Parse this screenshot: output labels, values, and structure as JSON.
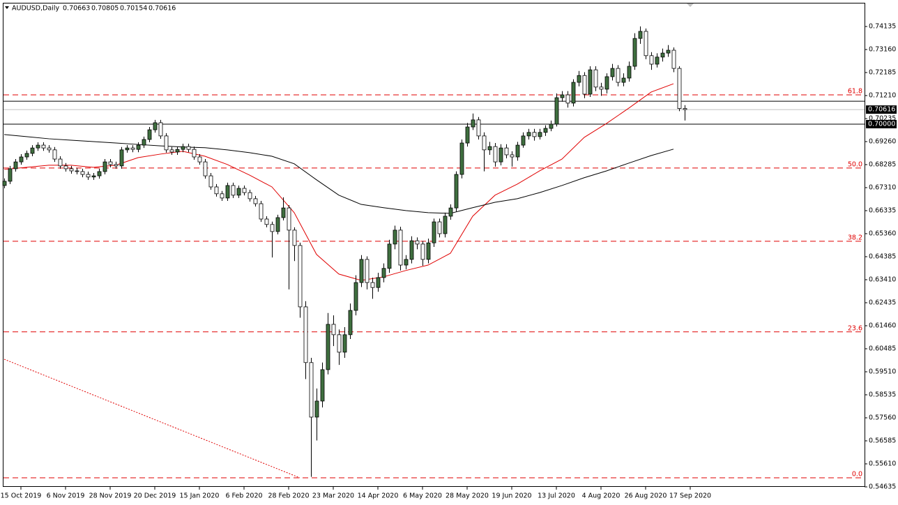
{
  "chart_data": {
    "type": "candlestick",
    "title": "AUDUSD,Daily",
    "up_color": "#3f6f3f",
    "down_color": "#ffffff",
    "stroke": "#000000",
    "categories": [
      "15 Oct 2019",
      "6 Nov 2019",
      "28 Nov 2019",
      "20 Dec 2019",
      "15 Jan 2020",
      "6 Feb 2020",
      "28 Feb 2020",
      "23 Mar 2020",
      "14 Apr 2020",
      "6 May 2020",
      "28 May 2020",
      "19 Jun 2020",
      "13 Jul 2020",
      "4 Aug 2020",
      "26 Aug 2020",
      "17 Sep 2020"
    ],
    "ylim": [
      0.54635,
      0.7511
    ],
    "yticks": [
      0.74135,
      {
        "value": 0.7316,
        "label": "0.73160"
      },
      0.72185,
      {
        "value": 0.7121,
        "label": "0.71210"
      },
      0.70235,
      {
        "value": 0.6926,
        "label": "0.69260"
      },
      0.68285,
      {
        "value": 0.6731,
        "label": "0.67310"
      },
      0.66335,
      {
        "value": 0.6536,
        "label": "0.65360"
      },
      0.64385,
      {
        "value": 0.6341,
        "label": "0.63410"
      },
      0.62435,
      {
        "value": 0.6146,
        "label": "0.61460"
      },
      0.60485,
      {
        "value": 0.5951,
        "label": "0.59510"
      },
      0.58535,
      {
        "value": 0.5756,
        "label": "0.57560"
      },
      0.56585,
      {
        "value": 0.5561,
        "label": "0.55610"
      },
      0.54635
    ],
    "candles": [
      [
        0.674,
        0.677,
        0.6728,
        0.6758
      ],
      [
        0.6758,
        0.6823,
        0.6746,
        0.6811
      ],
      [
        0.6811,
        0.6852,
        0.6799,
        0.684
      ],
      [
        0.684,
        0.6873,
        0.6828,
        0.6861
      ],
      [
        0.6861,
        0.6888,
        0.6849,
        0.6876
      ],
      [
        0.6876,
        0.6911,
        0.6864,
        0.6899
      ],
      [
        0.6899,
        0.6923,
        0.6887,
        0.6911
      ],
      [
        0.6911,
        0.6923,
        0.6887,
        0.6899
      ],
      [
        0.6899,
        0.6911,
        0.6879,
        0.6891
      ],
      [
        0.6891,
        0.6903,
        0.684,
        0.6852
      ],
      [
        0.6852,
        0.6864,
        0.6811,
        0.6823
      ],
      [
        0.6823,
        0.6835,
        0.6799,
        0.6811
      ],
      [
        0.6811,
        0.6823,
        0.679,
        0.6802
      ],
      [
        0.6802,
        0.6814,
        0.6787,
        0.6799
      ],
      [
        0.6799,
        0.6811,
        0.6775,
        0.6787
      ],
      [
        0.6787,
        0.6799,
        0.6764,
        0.6776
      ],
      [
        0.6776,
        0.6793,
        0.6764,
        0.6781
      ],
      [
        0.6781,
        0.6811,
        0.6769,
        0.6799
      ],
      [
        0.6799,
        0.6852,
        0.6787,
        0.684
      ],
      [
        0.684,
        0.6852,
        0.6817,
        0.6829
      ],
      [
        0.6829,
        0.6841,
        0.6811,
        0.6823
      ],
      [
        0.6823,
        0.6903,
        0.6811,
        0.6891
      ],
      [
        0.6891,
        0.6911,
        0.6879,
        0.6899
      ],
      [
        0.6899,
        0.6911,
        0.6881,
        0.6893
      ],
      [
        0.6893,
        0.6923,
        0.6881,
        0.6911
      ],
      [
        0.6911,
        0.6947,
        0.6899,
        0.6935
      ],
      [
        0.6935,
        0.6988,
        0.6923,
        0.6976
      ],
      [
        0.6976,
        0.7018,
        0.6964,
        0.7006
      ],
      [
        0.7006,
        0.7018,
        0.6938,
        0.695
      ],
      [
        0.695,
        0.6962,
        0.6879,
        0.6891
      ],
      [
        0.6891,
        0.6903,
        0.687,
        0.6882
      ],
      [
        0.6882,
        0.6905,
        0.687,
        0.6893
      ],
      [
        0.6893,
        0.6917,
        0.6881,
        0.6905
      ],
      [
        0.6905,
        0.6917,
        0.6881,
        0.6893
      ],
      [
        0.6893,
        0.6905,
        0.6849,
        0.6861
      ],
      [
        0.6861,
        0.6873,
        0.6828,
        0.684
      ],
      [
        0.684,
        0.6852,
        0.6769,
        0.6781
      ],
      [
        0.6781,
        0.6793,
        0.6722,
        0.6734
      ],
      [
        0.6734,
        0.6746,
        0.6693,
        0.6705
      ],
      [
        0.6705,
        0.6717,
        0.6675,
        0.6687
      ],
      [
        0.6687,
        0.6752,
        0.6675,
        0.674
      ],
      [
        0.674,
        0.6752,
        0.6687,
        0.6699
      ],
      [
        0.6699,
        0.674,
        0.6687,
        0.6728
      ],
      [
        0.6728,
        0.674,
        0.6698,
        0.671
      ],
      [
        0.671,
        0.6722,
        0.6672,
        0.6684
      ],
      [
        0.6684,
        0.6696,
        0.6651,
        0.6663
      ],
      [
        0.6663,
        0.6675,
        0.6586,
        0.6598
      ],
      [
        0.6598,
        0.661,
        0.6563,
        0.6575
      ],
      [
        0.6575,
        0.6587,
        0.6435,
        0.6545
      ],
      [
        0.6545,
        0.6616,
        0.6533,
        0.6604
      ],
      [
        0.6604,
        0.669,
        0.6592,
        0.6645
      ],
      [
        0.6645,
        0.6657,
        0.63,
        0.6551
      ],
      [
        0.6551,
        0.6563,
        0.642,
        0.6486
      ],
      [
        0.6486,
        0.6498,
        0.618,
        0.6226
      ],
      [
        0.6226,
        0.625,
        0.592,
        0.599
      ],
      [
        0.599,
        0.601,
        0.5506,
        0.5759
      ],
      [
        0.5759,
        0.588,
        0.566,
        0.5827
      ],
      [
        0.5827,
        0.599,
        0.58,
        0.596
      ],
      [
        0.596,
        0.62,
        0.594,
        0.6152
      ],
      [
        0.6152,
        0.619,
        0.606,
        0.6108
      ],
      [
        0.6108,
        0.613,
        0.598,
        0.6034
      ],
      [
        0.6034,
        0.614,
        0.601,
        0.6108
      ],
      [
        0.6108,
        0.624,
        0.609,
        0.6211
      ],
      [
        0.6211,
        0.636,
        0.619,
        0.6329
      ],
      [
        0.6329,
        0.6445,
        0.631,
        0.6427
      ],
      [
        0.6427,
        0.644,
        0.63,
        0.6329
      ],
      [
        0.6329,
        0.635,
        0.626,
        0.6308
      ],
      [
        0.6308,
        0.637,
        0.629,
        0.635
      ],
      [
        0.635,
        0.641,
        0.633,
        0.6389
      ],
      [
        0.6389,
        0.651,
        0.637,
        0.6492
      ],
      [
        0.6492,
        0.657,
        0.647,
        0.6551
      ],
      [
        0.6551,
        0.6565,
        0.638,
        0.6403
      ],
      [
        0.6403,
        0.6445,
        0.6385,
        0.6427
      ],
      [
        0.6427,
        0.6525,
        0.641,
        0.6506
      ],
      [
        0.6506,
        0.652,
        0.647,
        0.6492
      ],
      [
        0.6492,
        0.6505,
        0.64,
        0.6427
      ],
      [
        0.6427,
        0.6515,
        0.641,
        0.6497
      ],
      [
        0.6497,
        0.66,
        0.648,
        0.6586
      ],
      [
        0.6586,
        0.66,
        0.652,
        0.6536
      ],
      [
        0.6536,
        0.6625,
        0.652,
        0.661
      ],
      [
        0.661,
        0.666,
        0.6595,
        0.6645
      ],
      [
        0.6645,
        0.68,
        0.663,
        0.6787
      ],
      [
        0.6787,
        0.6935,
        0.677,
        0.692
      ],
      [
        0.692,
        0.7005,
        0.6905,
        0.6988
      ],
      [
        0.6988,
        0.7045,
        0.6975,
        0.7018
      ],
      [
        0.7018,
        0.703,
        0.6935,
        0.695
      ],
      [
        0.695,
        0.6965,
        0.68,
        0.6891
      ],
      [
        0.6891,
        0.6925,
        0.687,
        0.6905
      ],
      [
        0.6905,
        0.692,
        0.682,
        0.684
      ],
      [
        0.684,
        0.6915,
        0.6825,
        0.6899
      ],
      [
        0.6899,
        0.6915,
        0.6855,
        0.687
      ],
      [
        0.687,
        0.6885,
        0.682,
        0.6861
      ],
      [
        0.6861,
        0.6925,
        0.6845,
        0.6911
      ],
      [
        0.6911,
        0.6965,
        0.69,
        0.695
      ],
      [
        0.695,
        0.698,
        0.6935,
        0.6965
      ],
      [
        0.6965,
        0.698,
        0.693,
        0.6947
      ],
      [
        0.6947,
        0.698,
        0.6935,
        0.6965
      ],
      [
        0.6965,
        0.6995,
        0.695,
        0.6982
      ],
      [
        0.6982,
        0.7015,
        0.697,
        0.7
      ],
      [
        0.7,
        0.713,
        0.699,
        0.7112
      ],
      [
        0.7112,
        0.714,
        0.7095,
        0.7124
      ],
      [
        0.7124,
        0.714,
        0.707,
        0.7089
      ],
      [
        0.7089,
        0.719,
        0.7075,
        0.7177
      ],
      [
        0.7177,
        0.7225,
        0.716,
        0.7206
      ],
      [
        0.7206,
        0.722,
        0.711,
        0.7127
      ],
      [
        0.7127,
        0.7245,
        0.7115,
        0.723
      ],
      [
        0.723,
        0.7245,
        0.714,
        0.7157
      ],
      [
        0.7157,
        0.7175,
        0.712,
        0.7148
      ],
      [
        0.7148,
        0.7215,
        0.713,
        0.7201
      ],
      [
        0.7201,
        0.7255,
        0.7185,
        0.7236
      ],
      [
        0.7236,
        0.725,
        0.716,
        0.7177
      ],
      [
        0.7177,
        0.7215,
        0.716,
        0.7195
      ],
      [
        0.7195,
        0.7265,
        0.718,
        0.7245
      ],
      [
        0.7245,
        0.7385,
        0.723,
        0.7363
      ],
      [
        0.7363,
        0.7414,
        0.734,
        0.7393
      ],
      [
        0.7393,
        0.7405,
        0.7275,
        0.729
      ],
      [
        0.729,
        0.7305,
        0.723,
        0.7254
      ],
      [
        0.7254,
        0.73,
        0.724,
        0.7284
      ],
      [
        0.7284,
        0.732,
        0.7265,
        0.7301
      ],
      [
        0.7301,
        0.7335,
        0.7285,
        0.7313
      ],
      [
        0.7313,
        0.7325,
        0.722,
        0.7236
      ],
      [
        0.7236,
        0.7245,
        0.7055,
        0.7066
      ],
      [
        0.70663,
        0.70805,
        0.70154,
        0.70616
      ]
    ],
    "moving_averages": [
      {
        "color": "#e00000",
        "values": [
          0.6808,
          0.6817,
          0.6826,
          0.6826,
          0.6817,
          0.6826,
          0.6858,
          0.6873,
          0.6885,
          0.6864,
          0.6829,
          0.6784,
          0.6734,
          0.6625,
          0.6448,
          0.6365,
          0.6338,
          0.6353,
          0.638,
          0.6403,
          0.6453,
          0.661,
          0.6699,
          0.6746,
          0.6802,
          0.6852,
          0.6944,
          0.7003,
          0.7068,
          0.7136,
          0.7171
        ]
      },
      {
        "color": "#000000",
        "values": [
          0.6956,
          0.6947,
          0.6938,
          0.6932,
          0.6926,
          0.692,
          0.6914,
          0.6908,
          0.6903,
          0.69,
          0.6891,
          0.6879,
          0.6864,
          0.6832,
          0.6764,
          0.6699,
          0.666,
          0.6646,
          0.6634,
          0.6625,
          0.6622,
          0.6646,
          0.6669,
          0.6684,
          0.671,
          0.674,
          0.6773,
          0.6802,
          0.6835,
          0.6867,
          0.6894
        ]
      }
    ],
    "fib_color": "#e00000",
    "fib_levels": [
      {
        "value": 0.7124,
        "label": "61.8"
      },
      {
        "value": 0.6814,
        "label": "50.0"
      },
      {
        "value": 0.6504,
        "label": "38.2"
      },
      {
        "value": 0.612,
        "label": "23.6"
      },
      {
        "value": 0.5502,
        "label": "0.0"
      }
    ],
    "horizontal_lines": [
      {
        "value": 0.7097,
        "color": "#000000"
      },
      {
        "value": 0.7,
        "color": "#000000",
        "label": "0.70000"
      }
    ]
  }
}
